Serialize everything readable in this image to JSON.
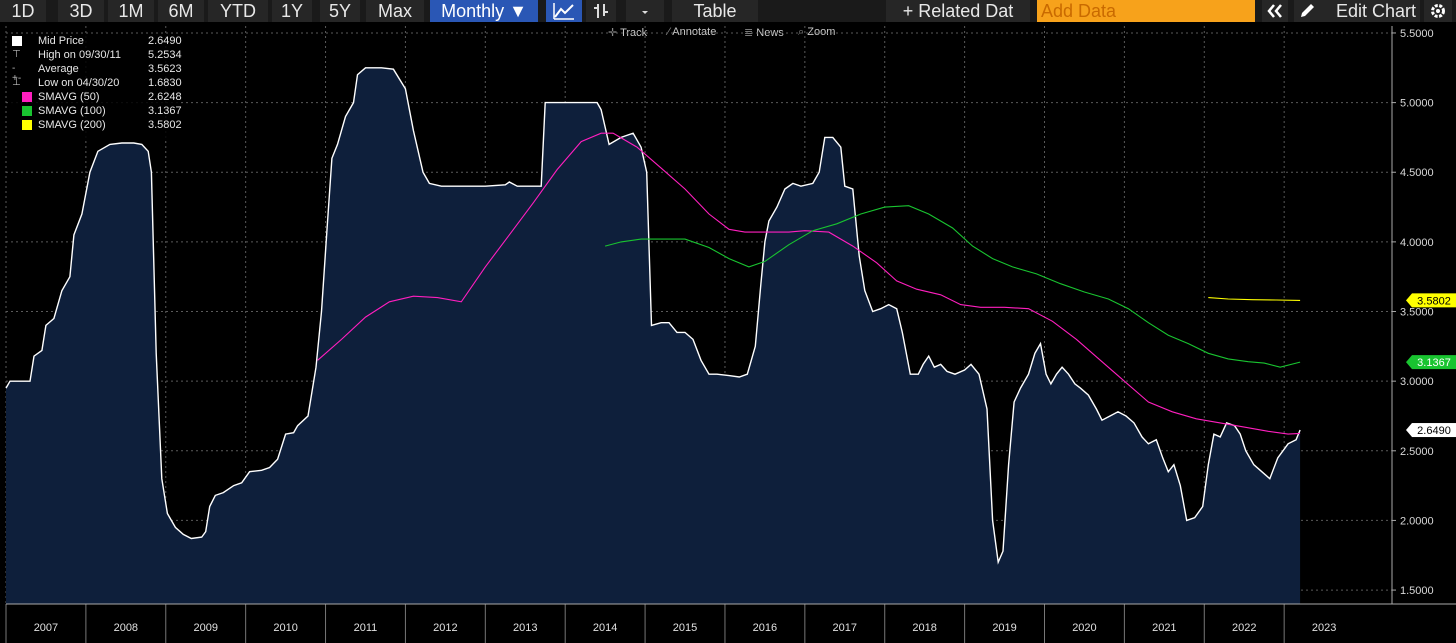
{
  "toolbar": {
    "ranges": [
      "1D",
      "3D",
      "1M",
      "6M",
      "YTD",
      "1Y",
      "5Y",
      "Max"
    ],
    "frequency": "Monthly ▼",
    "table_label": "Table",
    "related_label": "+ Related Dat",
    "add_data_placeholder": "Add Data",
    "edit_chart_label": "Edit Chart"
  },
  "subtools": {
    "track": "Track",
    "annotate": "Annotate",
    "news": "News",
    "zoom": "Zoom"
  },
  "legend": [
    {
      "label": "Mid Price",
      "value": "2.6490",
      "color": "#ffffff"
    },
    {
      "label": "High on 09/30/11",
      "value": "5.2534",
      "color": "#cccccc"
    },
    {
      "label": "Average",
      "value": "3.5623",
      "color": "#cccccc"
    },
    {
      "label": "Low on 04/30/20",
      "value": "1.6830",
      "color": "#cccccc"
    },
    {
      "label": "SMAVG (50)",
      "value": "2.6248",
      "color": "#ff1fbf"
    },
    {
      "label": "SMAVG (100)",
      "value": "3.1367",
      "color": "#19c430"
    },
    {
      "label": "SMAVG (200)",
      "value": "3.5802",
      "color": "#ffff00"
    }
  ],
  "chart_data": {
    "type": "area",
    "x_ticks": [
      "2007",
      "2008",
      "2009",
      "2010",
      "2011",
      "2012",
      "2013",
      "2014",
      "2015",
      "2016",
      "2017",
      "2018",
      "2019",
      "2020",
      "2021",
      "2022",
      "2023"
    ],
    "y_ticks": [
      "1.5000",
      "2.0000",
      "2.5000",
      "3.0000",
      "3.5000",
      "4.0000",
      "4.5000",
      "5.0000",
      "5.5000"
    ],
    "ylim": [
      1.4,
      5.55
    ],
    "xlim": [
      2006.5,
      2023.85
    ],
    "grid": true,
    "legend_position": "top-left",
    "series": [
      {
        "name": "Mid Price",
        "color": "#ffffff",
        "fill": "#0e1f3b",
        "points": [
          [
            2006.5,
            2.95
          ],
          [
            2006.55,
            3.0
          ],
          [
            2006.8,
            3.0
          ],
          [
            2006.85,
            3.18
          ],
          [
            2006.95,
            3.22
          ],
          [
            2007.0,
            3.4
          ],
          [
            2007.1,
            3.45
          ],
          [
            2007.2,
            3.65
          ],
          [
            2007.3,
            3.75
          ],
          [
            2007.35,
            4.05
          ],
          [
            2007.45,
            4.2
          ],
          [
            2007.55,
            4.5
          ],
          [
            2007.65,
            4.65
          ],
          [
            2007.8,
            4.7
          ],
          [
            2007.95,
            4.71
          ],
          [
            2008.1,
            4.71
          ],
          [
            2008.2,
            4.7
          ],
          [
            2008.28,
            4.65
          ],
          [
            2008.32,
            4.5
          ],
          [
            2008.38,
            3.2
          ],
          [
            2008.45,
            2.3
          ],
          [
            2008.52,
            2.05
          ],
          [
            2008.62,
            1.95
          ],
          [
            2008.72,
            1.9
          ],
          [
            2008.82,
            1.87
          ],
          [
            2008.95,
            1.88
          ],
          [
            2009.0,
            1.92
          ],
          [
            2009.05,
            2.1
          ],
          [
            2009.12,
            2.18
          ],
          [
            2009.22,
            2.2
          ],
          [
            2009.35,
            2.25
          ],
          [
            2009.45,
            2.27
          ],
          [
            2009.55,
            2.35
          ],
          [
            2009.7,
            2.36
          ],
          [
            2009.8,
            2.38
          ],
          [
            2009.9,
            2.44
          ],
          [
            2010.0,
            2.62
          ],
          [
            2010.1,
            2.63
          ],
          [
            2010.15,
            2.68
          ],
          [
            2010.28,
            2.75
          ],
          [
            2010.38,
            3.1
          ],
          [
            2010.45,
            3.5
          ],
          [
            2010.52,
            4.1
          ],
          [
            2010.58,
            4.6
          ],
          [
            2010.65,
            4.7
          ],
          [
            2010.75,
            4.9
          ],
          [
            2010.85,
            5.0
          ],
          [
            2010.9,
            5.2
          ],
          [
            2011.0,
            5.25
          ],
          [
            2011.2,
            5.25
          ],
          [
            2011.35,
            5.24
          ],
          [
            2011.5,
            5.1
          ],
          [
            2011.6,
            4.8
          ],
          [
            2011.72,
            4.5
          ],
          [
            2011.8,
            4.42
          ],
          [
            2011.95,
            4.4
          ],
          [
            2012.2,
            4.4
          ],
          [
            2012.5,
            4.4
          ],
          [
            2012.75,
            4.41
          ],
          [
            2012.8,
            4.43
          ],
          [
            2012.9,
            4.4
          ],
          [
            2013.1,
            4.4
          ],
          [
            2013.2,
            4.4
          ],
          [
            2013.25,
            5.0
          ],
          [
            2013.5,
            5.0
          ],
          [
            2013.9,
            5.0
          ],
          [
            2013.95,
            4.95
          ],
          [
            2014.05,
            4.7
          ],
          [
            2014.2,
            4.75
          ],
          [
            2014.35,
            4.78
          ],
          [
            2014.45,
            4.68
          ],
          [
            2014.52,
            4.5
          ],
          [
            2014.58,
            3.4
          ],
          [
            2014.7,
            3.42
          ],
          [
            2014.8,
            3.42
          ],
          [
            2014.9,
            3.35
          ],
          [
            2015.0,
            3.35
          ],
          [
            2015.1,
            3.3
          ],
          [
            2015.2,
            3.15
          ],
          [
            2015.3,
            3.05
          ],
          [
            2015.4,
            3.05
          ],
          [
            2015.55,
            3.04
          ],
          [
            2015.68,
            3.03
          ],
          [
            2015.78,
            3.05
          ],
          [
            2015.88,
            3.25
          ],
          [
            2015.95,
            3.7
          ],
          [
            2016.0,
            4.0
          ],
          [
            2016.05,
            4.15
          ],
          [
            2016.15,
            4.25
          ],
          [
            2016.25,
            4.38
          ],
          [
            2016.35,
            4.42
          ],
          [
            2016.45,
            4.4
          ],
          [
            2016.6,
            4.42
          ],
          [
            2016.68,
            4.5
          ],
          [
            2016.75,
            4.75
          ],
          [
            2016.85,
            4.75
          ],
          [
            2016.95,
            4.68
          ],
          [
            2017.0,
            4.4
          ],
          [
            2017.1,
            4.38
          ],
          [
            2017.18,
            3.9
          ],
          [
            2017.25,
            3.65
          ],
          [
            2017.35,
            3.5
          ],
          [
            2017.45,
            3.52
          ],
          [
            2017.55,
            3.55
          ],
          [
            2017.65,
            3.52
          ],
          [
            2017.72,
            3.35
          ],
          [
            2017.82,
            3.05
          ],
          [
            2017.92,
            3.05
          ],
          [
            2017.98,
            3.12
          ],
          [
            2018.05,
            3.18
          ],
          [
            2018.12,
            3.1
          ],
          [
            2018.2,
            3.12
          ],
          [
            2018.28,
            3.07
          ],
          [
            2018.38,
            3.05
          ],
          [
            2018.5,
            3.08
          ],
          [
            2018.58,
            3.12
          ],
          [
            2018.68,
            3.05
          ],
          [
            2018.78,
            2.8
          ],
          [
            2018.85,
            2.0
          ],
          [
            2018.92,
            1.7
          ],
          [
            2018.98,
            1.78
          ],
          [
            2019.05,
            2.4
          ],
          [
            2019.12,
            2.85
          ],
          [
            2019.2,
            2.95
          ],
          [
            2019.3,
            3.05
          ],
          [
            2019.38,
            3.2
          ],
          [
            2019.45,
            3.27
          ],
          [
            2019.52,
            3.05
          ],
          [
            2019.58,
            2.98
          ],
          [
            2019.65,
            3.05
          ],
          [
            2019.72,
            3.1
          ],
          [
            2019.8,
            3.05
          ],
          [
            2019.88,
            2.98
          ],
          [
            2019.95,
            2.95
          ],
          [
            2020.05,
            2.9
          ],
          [
            2020.15,
            2.8
          ],
          [
            2020.22,
            2.72
          ],
          [
            2020.32,
            2.75
          ],
          [
            2020.42,
            2.78
          ],
          [
            2020.52,
            2.75
          ],
          [
            2020.62,
            2.7
          ],
          [
            2020.72,
            2.6
          ],
          [
            2020.8,
            2.55
          ],
          [
            2020.9,
            2.58
          ],
          [
            2020.98,
            2.45
          ],
          [
            2021.05,
            2.35
          ],
          [
            2021.12,
            2.4
          ],
          [
            2021.2,
            2.25
          ],
          [
            2021.28,
            2.0
          ],
          [
            2021.38,
            2.02
          ],
          [
            2021.48,
            2.1
          ],
          [
            2021.55,
            2.4
          ],
          [
            2021.62,
            2.62
          ],
          [
            2021.7,
            2.6
          ],
          [
            2021.78,
            2.7
          ],
          [
            2021.88,
            2.68
          ],
          [
            2021.95,
            2.62
          ],
          [
            2022.02,
            2.5
          ],
          [
            2022.12,
            2.4
          ],
          [
            2022.22,
            2.35
          ],
          [
            2022.32,
            2.3
          ],
          [
            2022.42,
            2.45
          ],
          [
            2022.55,
            2.55
          ],
          [
            2022.65,
            2.58
          ],
          [
            2022.7,
            2.649
          ]
        ]
      },
      {
        "name": "SMAVG (50)",
        "color": "#ff1fbf",
        "points": [
          [
            2010.4,
            3.15
          ],
          [
            2010.7,
            3.3
          ],
          [
            2011.0,
            3.46
          ],
          [
            2011.3,
            3.57
          ],
          [
            2011.6,
            3.61
          ],
          [
            2011.9,
            3.6
          ],
          [
            2012.2,
            3.57
          ],
          [
            2012.5,
            3.82
          ],
          [
            2012.8,
            4.05
          ],
          [
            2013.1,
            4.28
          ],
          [
            2013.4,
            4.52
          ],
          [
            2013.7,
            4.72
          ],
          [
            2013.95,
            4.78
          ],
          [
            2014.1,
            4.78
          ],
          [
            2014.4,
            4.68
          ],
          [
            2014.7,
            4.53
          ],
          [
            2015.0,
            4.38
          ],
          [
            2015.3,
            4.2
          ],
          [
            2015.55,
            4.09
          ],
          [
            2015.75,
            4.07
          ],
          [
            2016.0,
            4.07
          ],
          [
            2016.3,
            4.07
          ],
          [
            2016.5,
            4.08
          ],
          [
            2016.8,
            4.07
          ],
          [
            2017.1,
            3.97
          ],
          [
            2017.4,
            3.85
          ],
          [
            2017.65,
            3.72
          ],
          [
            2017.9,
            3.66
          ],
          [
            2018.2,
            3.62
          ],
          [
            2018.45,
            3.55
          ],
          [
            2018.7,
            3.53
          ],
          [
            2019.0,
            3.53
          ],
          [
            2019.3,
            3.52
          ],
          [
            2019.6,
            3.43
          ],
          [
            2019.9,
            3.3
          ],
          [
            2020.2,
            3.15
          ],
          [
            2020.5,
            3.0
          ],
          [
            2020.8,
            2.85
          ],
          [
            2021.1,
            2.78
          ],
          [
            2021.4,
            2.73
          ],
          [
            2021.7,
            2.7
          ],
          [
            2022.0,
            2.67
          ],
          [
            2022.3,
            2.64
          ],
          [
            2022.55,
            2.62
          ],
          [
            2022.7,
            2.625
          ]
        ]
      },
      {
        "name": "SMAVG (100)",
        "color": "#19c430",
        "points": [
          [
            2014.0,
            3.97
          ],
          [
            2014.2,
            4.0
          ],
          [
            2014.45,
            4.02
          ],
          [
            2014.75,
            4.02
          ],
          [
            2015.0,
            4.02
          ],
          [
            2015.3,
            3.96
          ],
          [
            2015.55,
            3.88
          ],
          [
            2015.8,
            3.82
          ],
          [
            2016.0,
            3.86
          ],
          [
            2016.3,
            3.98
          ],
          [
            2016.6,
            4.08
          ],
          [
            2016.9,
            4.13
          ],
          [
            2017.2,
            4.2
          ],
          [
            2017.5,
            4.25
          ],
          [
            2017.8,
            4.26
          ],
          [
            2018.05,
            4.2
          ],
          [
            2018.35,
            4.1
          ],
          [
            2018.6,
            3.97
          ],
          [
            2018.85,
            3.88
          ],
          [
            2019.1,
            3.82
          ],
          [
            2019.4,
            3.77
          ],
          [
            2019.7,
            3.7
          ],
          [
            2020.0,
            3.64
          ],
          [
            2020.3,
            3.59
          ],
          [
            2020.55,
            3.52
          ],
          [
            2020.8,
            3.42
          ],
          [
            2021.05,
            3.33
          ],
          [
            2021.3,
            3.27
          ],
          [
            2021.55,
            3.2
          ],
          [
            2021.8,
            3.16
          ],
          [
            2022.05,
            3.14
          ],
          [
            2022.25,
            3.13
          ],
          [
            2022.45,
            3.1
          ],
          [
            2022.7,
            3.137
          ]
        ]
      },
      {
        "name": "SMAVG (200)",
        "color": "#ffff00",
        "points": [
          [
            2021.55,
            3.6
          ],
          [
            2021.8,
            3.59
          ],
          [
            2022.1,
            3.585
          ],
          [
            2022.4,
            3.583
          ],
          [
            2022.7,
            3.58
          ]
        ]
      }
    ],
    "value_tags": [
      {
        "label": "3.5802",
        "value": 3.5802,
        "bg": "#ffff00",
        "fg": "#000000"
      },
      {
        "label": "3.1367",
        "value": 3.1367,
        "bg": "#19c430",
        "fg": "#ffffff"
      },
      {
        "label": "2.6490",
        "value": 2.649,
        "bg": "#ffffff",
        "fg": "#000000"
      }
    ]
  }
}
